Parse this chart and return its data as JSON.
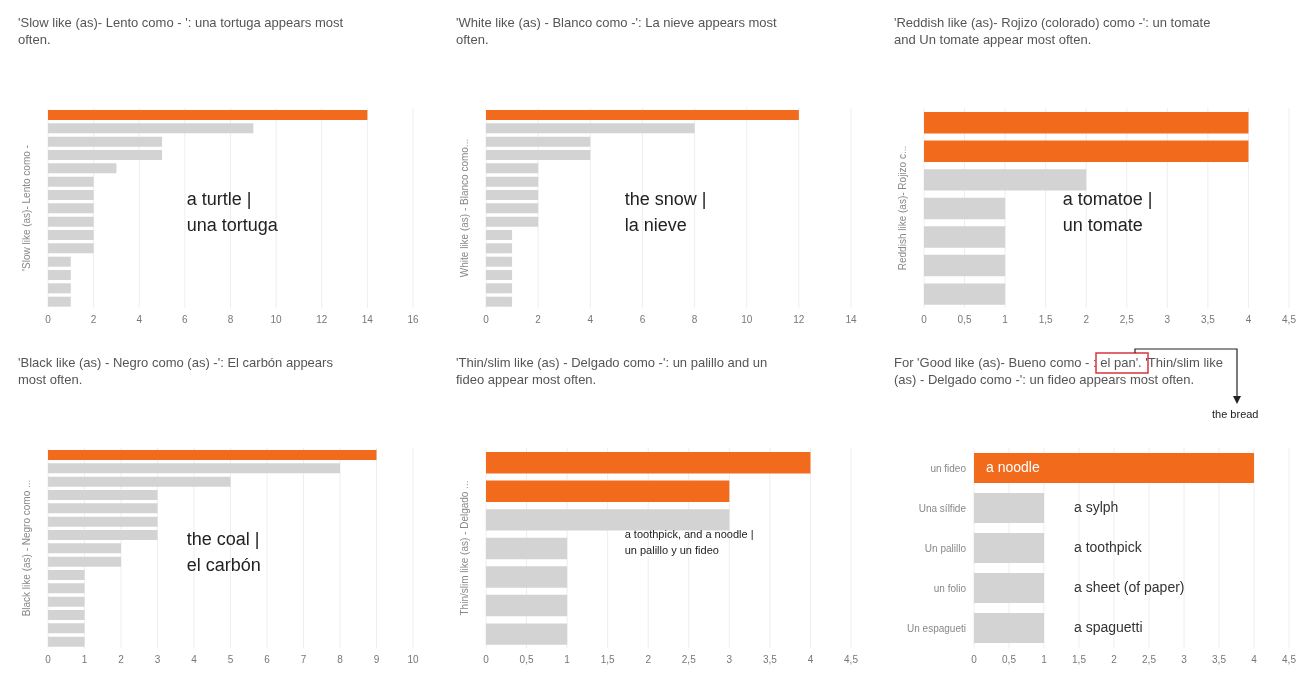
{
  "chart_data": [
    {
      "type": "bar",
      "orientation": "horizontal",
      "title": "'Slow like (as)-  Lento como - ': una tortuga appears most often.",
      "ylabel": "'Slow like (as)- Lento como -",
      "categories": [
        null,
        null,
        null,
        null,
        null,
        null,
        null,
        null,
        null,
        null,
        null,
        null,
        null,
        null,
        null
      ],
      "values": [
        14,
        9,
        5,
        5,
        3,
        2,
        2,
        2,
        2,
        2,
        2,
        1,
        1,
        1,
        1
      ],
      "colors": [
        "#f26b1d",
        "#d3d3d3",
        "#d3d3d3",
        "#d3d3d3",
        "#d3d3d3",
        "#d3d3d3",
        "#d3d3d3",
        "#d3d3d3",
        "#d3d3d3",
        "#d3d3d3",
        "#d3d3d3",
        "#d3d3d3",
        "#d3d3d3",
        "#d3d3d3",
        "#d3d3d3"
      ],
      "xlim": [
        0,
        16
      ],
      "xticks": [
        0,
        2,
        4,
        6,
        8,
        10,
        12,
        14,
        16
      ],
      "grid": "x",
      "tick_labels": "x",
      "annotations": [
        "a turtle |\nuna tortuga"
      ]
    },
    {
      "type": "bar",
      "orientation": "horizontal",
      "title": "'White like (as) -  Blanco como -': La nieve appears most often.",
      "ylabel": "White like (as) - Blanco como...",
      "categories": [
        null,
        null,
        null,
        null,
        null,
        null,
        null,
        null,
        null,
        null,
        null,
        null,
        null,
        null,
        null
      ],
      "values": [
        12,
        8,
        4,
        4,
        2,
        2,
        2,
        2,
        2,
        1,
        1,
        1,
        1,
        1,
        1
      ],
      "colors": [
        "#f26b1d",
        "#d3d3d3",
        "#d3d3d3",
        "#d3d3d3",
        "#d3d3d3",
        "#d3d3d3",
        "#d3d3d3",
        "#d3d3d3",
        "#d3d3d3",
        "#d3d3d3",
        "#d3d3d3",
        "#d3d3d3",
        "#d3d3d3",
        "#d3d3d3",
        "#d3d3d3"
      ],
      "xlim": [
        0,
        14
      ],
      "xticks": [
        0,
        2,
        4,
        6,
        8,
        10,
        12,
        14
      ],
      "grid": "x",
      "tick_labels": "x",
      "annotations": [
        "the snow |\nla nieve"
      ]
    },
    {
      "type": "bar",
      "orientation": "horizontal",
      "title": "'Reddish  like (as)-  Rojizo (colorado) como -': un tomate and Un tomate appear most often.",
      "ylabel": "Reddish like (as)- Rojizo c...",
      "categories": [
        null,
        null,
        null,
        null,
        null,
        null,
        null
      ],
      "values": [
        4,
        4,
        2,
        1,
        1,
        1,
        1
      ],
      "colors": [
        "#f26b1d",
        "#f26b1d",
        "#d3d3d3",
        "#d3d3d3",
        "#d3d3d3",
        "#d3d3d3",
        "#d3d3d3"
      ],
      "xlim": [
        0,
        4.5
      ],
      "xticks": [
        0,
        {
          "value": 0.5,
          "label": "0,5"
        },
        1,
        {
          "value": 1.5,
          "label": "1,5"
        },
        2,
        {
          "value": 2.5,
          "label": "2,5"
        },
        3,
        {
          "value": 3.5,
          "label": "3,5"
        },
        4,
        {
          "value": 4.5,
          "label": "4,5"
        }
      ],
      "grid": "x",
      "tick_labels": "x",
      "annotations": [
        "a tomatoe |\nun tomate"
      ]
    },
    {
      "type": "bar",
      "orientation": "horizontal",
      "title": "'Black  like (as) - Negro como (as) -': El carbón appears most often.",
      "ylabel": "Black like (as) - Negro como ...",
      "categories": [
        null,
        null,
        null,
        null,
        null,
        null,
        null,
        null,
        null,
        null,
        null,
        null,
        null,
        null,
        null
      ],
      "values": [
        9,
        8,
        5,
        3,
        3,
        3,
        3,
        2,
        2,
        1,
        1,
        1,
        1,
        1,
        1
      ],
      "colors": [
        "#f26b1d",
        "#d3d3d3",
        "#d3d3d3",
        "#d3d3d3",
        "#d3d3d3",
        "#d3d3d3",
        "#d3d3d3",
        "#d3d3d3",
        "#d3d3d3",
        "#d3d3d3",
        "#d3d3d3",
        "#d3d3d3",
        "#d3d3d3",
        "#d3d3d3",
        "#d3d3d3"
      ],
      "xlim": [
        0,
        10
      ],
      "xticks": [
        0,
        1,
        2,
        3,
        4,
        5,
        6,
        7,
        8,
        9,
        10
      ],
      "grid": "x",
      "tick_labels": "x",
      "annotations": [
        "the coal |\nel carbón"
      ]
    },
    {
      "type": "bar",
      "orientation": "horizontal",
      "title": "'Thin/slim like (as) - Delgado como -': un palillo and un fideo appear most often.",
      "ylabel": "Thin/slim like (as) - Delgado ...",
      "categories": [
        null,
        null,
        null,
        null,
        null,
        null,
        null
      ],
      "values": [
        4,
        3,
        3,
        1,
        1,
        1,
        1
      ],
      "colors": [
        "#f26b1d",
        "#f26b1d",
        "#d3d3d3",
        "#d3d3d3",
        "#d3d3d3",
        "#d3d3d3",
        "#d3d3d3"
      ],
      "xlim": [
        0,
        4.5
      ],
      "xticks": [
        0,
        {
          "value": 0.5,
          "label": "0,5"
        },
        1,
        {
          "value": 1.5,
          "label": "1,5"
        },
        2,
        {
          "value": 2.5,
          "label": "2,5"
        },
        3,
        {
          "value": 3.5,
          "label": "3,5"
        },
        4,
        {
          "value": 4.5,
          "label": "4,5"
        }
      ],
      "grid": "x",
      "tick_labels": "x",
      "annotations": [
        "a toothpick, and a noodle |\nun palillo y un fideo"
      ]
    },
    {
      "type": "bar",
      "orientation": "horizontal",
      "title": "For 'Good like (as)-  Bueno como - : el pan'. 'Thin/slim like (as) - Delgado como  -': un fideo appears most often.",
      "categories": [
        "un fideo",
        "Una sílfide",
        "Un palillo",
        "un folio",
        "Un espagueti"
      ],
      "values": [
        4,
        1,
        1,
        1,
        1
      ],
      "colors": [
        "#f26b1d",
        "#d3d3d3",
        "#d3d3d3",
        "#d3d3d3",
        "#d3d3d3"
      ],
      "xlim": [
        0,
        4.5
      ],
      "xticks": [
        0,
        {
          "value": 0.5,
          "label": "0,5"
        },
        1,
        {
          "value": 1.5,
          "label": "1,5"
        },
        2,
        {
          "value": 2.5,
          "label": "2,5"
        },
        3,
        {
          "value": 3.5,
          "label": "3,5"
        },
        4,
        {
          "value": 4.5,
          "label": "4,5"
        }
      ],
      "grid": "x",
      "annotations": [
        "a noodle",
        "a sylph",
        "a toothpick",
        "a sheet (of paper)",
        "a spaguetti",
        "the bread"
      ]
    }
  ]
}
